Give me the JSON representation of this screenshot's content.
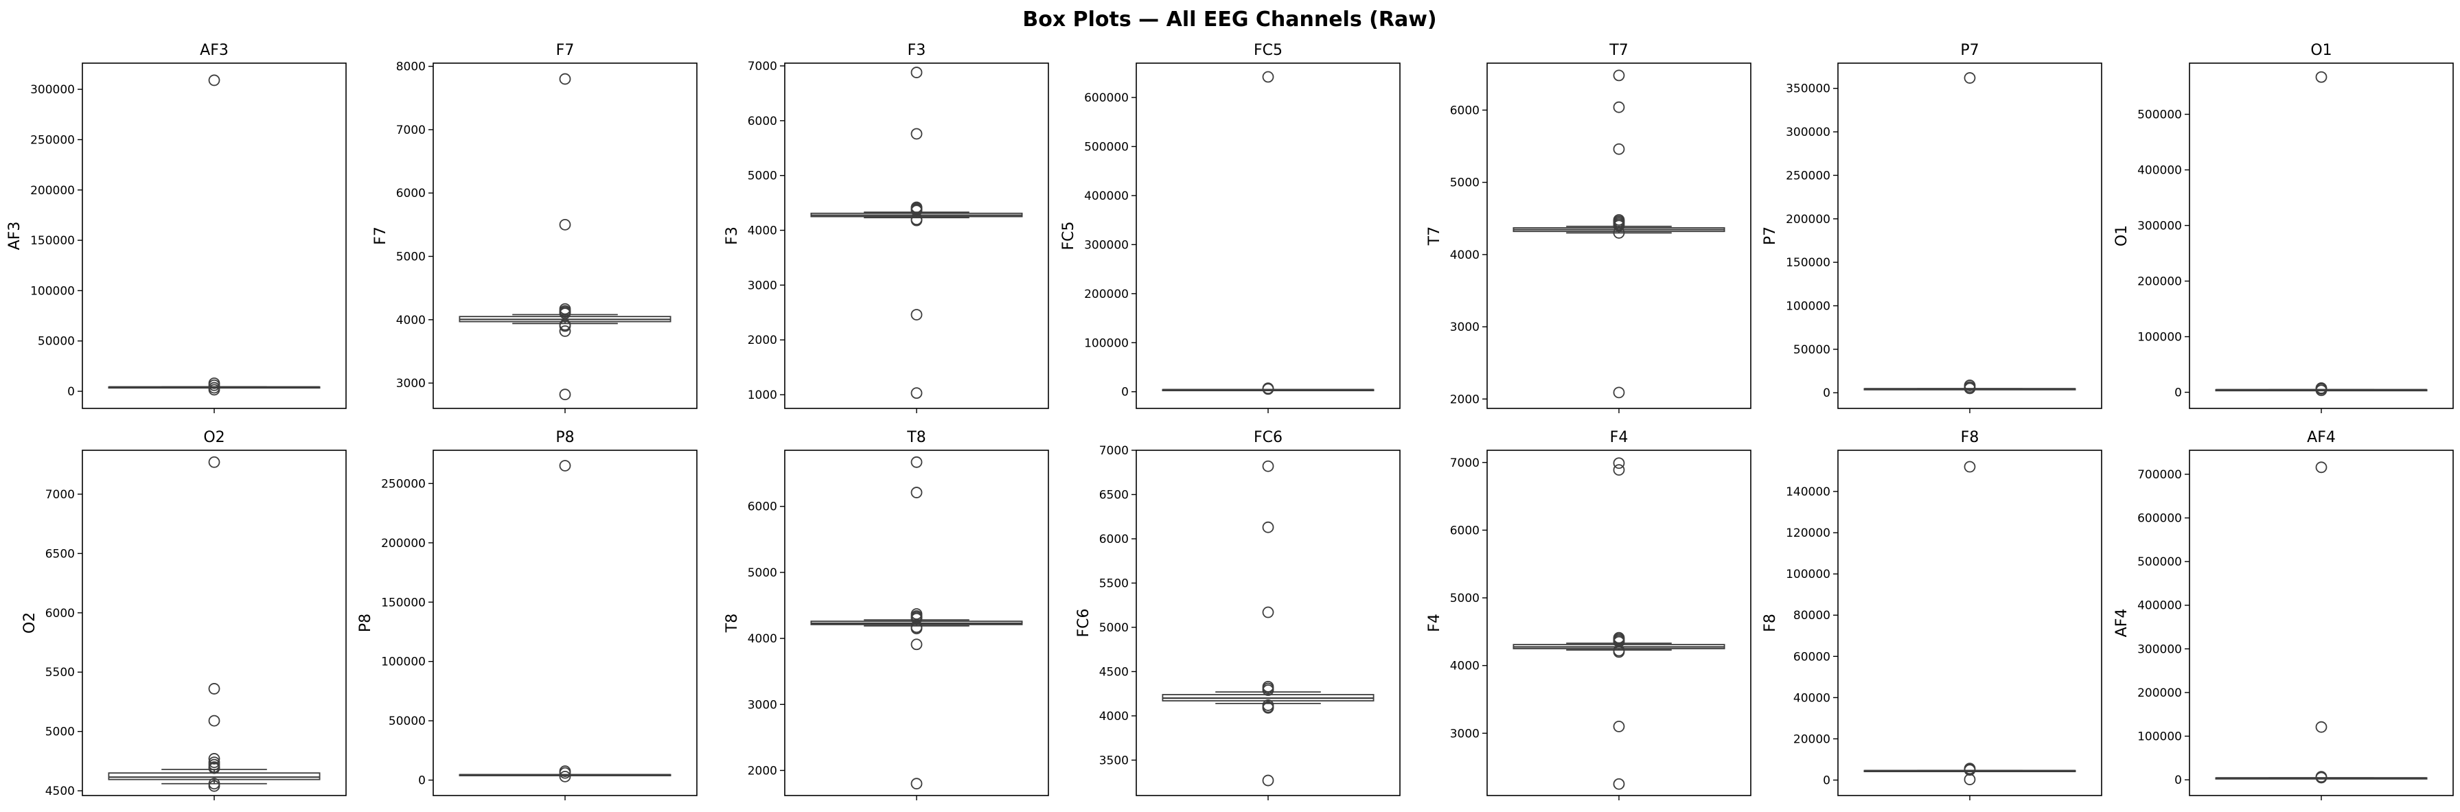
{
  "chart_data": {
    "type": "box",
    "title": "Box Plots — All EEG Channels (Raw)",
    "layout": {
      "rows": 2,
      "cols": 7
    },
    "colors": {
      "box_edge": "#3d3d3d",
      "box_fill": "#ffffff",
      "axes": "#000000"
    },
    "grid": false,
    "panels": [
      {
        "title": "AF3",
        "ylabel": "AF3",
        "ylim": [
          -17000,
          326000
        ],
        "yticks": [
          0,
          50000,
          100000,
          150000,
          200000,
          250000,
          300000
        ],
        "ytick_labels": [
          "0",
          "50000",
          "100000",
          "150000",
          "200000",
          "250000",
          "300000"
        ],
        "box": {
          "q1": 4270,
          "median": 4300,
          "q3": 4330,
          "whisker_low": 4100,
          "whisker_high": 4500
        },
        "outliers": [
          309000,
          8000,
          6000,
          3500,
          1500
        ]
      },
      {
        "title": "F7",
        "ylabel": "F7",
        "ylim": [
          2600,
          8050
        ],
        "yticks": [
          3000,
          4000,
          5000,
          6000,
          7000,
          8000
        ],
        "ytick_labels": [
          "3000",
          "4000",
          "5000",
          "6000",
          "7000",
          "8000"
        ],
        "box": {
          "q1": 3970,
          "median": 4005,
          "q3": 4050,
          "whisker_low": 3940,
          "whisker_high": 4080
        },
        "outliers": [
          7800,
          5500,
          4170,
          4140,
          4120,
          4100,
          3920,
          3900,
          3820,
          2820
        ]
      },
      {
        "title": "F3",
        "ylabel": "F3",
        "ylim": [
          750,
          7050
        ],
        "yticks": [
          1000,
          2000,
          3000,
          4000,
          5000,
          6000,
          7000
        ],
        "ytick_labels": [
          "1000",
          "2000",
          "3000",
          "4000",
          "5000",
          "6000",
          "7000"
        ],
        "box": {
          "q1": 4250,
          "median": 4275,
          "q3": 4310,
          "whisker_low": 4230,
          "whisker_high": 4330
        },
        "outliers": [
          6880,
          5760,
          4420,
          4400,
          4380,
          4360,
          4200,
          4180,
          2460,
          1030
        ]
      },
      {
        "title": "FC5",
        "ylabel": "FC5",
        "ylim": [
          -34000,
          670000
        ],
        "yticks": [
          0,
          100000,
          200000,
          300000,
          400000,
          500000,
          600000
        ],
        "ytick_labels": [
          "0",
          "100000",
          "200000",
          "300000",
          "400000",
          "500000",
          "600000"
        ],
        "box": {
          "q1": 4300,
          "median": 4330,
          "q3": 4360,
          "whisker_low": 4200,
          "whisker_high": 4500
        },
        "outliers": [
          642000,
          7000,
          5500
        ]
      },
      {
        "title": "T7",
        "ylabel": "T7",
        "ylim": [
          1870,
          6650
        ],
        "yticks": [
          2000,
          3000,
          4000,
          5000,
          6000
        ],
        "ytick_labels": [
          "2000",
          "3000",
          "4000",
          "5000",
          "6000"
        ],
        "box": {
          "q1": 4320,
          "median": 4345,
          "q3": 4370,
          "whisker_low": 4300,
          "whisker_high": 4390
        },
        "outliers": [
          6480,
          6040,
          5460,
          4480,
          4460,
          4440,
          4420,
          4400,
          4300,
          2090
        ]
      },
      {
        "title": "P7",
        "ylabel": "P7",
        "ylim": [
          -18000,
          379000
        ],
        "yticks": [
          0,
          50000,
          100000,
          150000,
          200000,
          250000,
          300000,
          350000
        ],
        "ytick_labels": [
          "0",
          "50000",
          "100000",
          "150000",
          "200000",
          "250000",
          "300000",
          "350000"
        ],
        "box": {
          "q1": 4580,
          "median": 4600,
          "q3": 4630,
          "whisker_low": 4500,
          "whisker_high": 4700
        },
        "outliers": [
          362000,
          8500,
          6500,
          5000
        ]
      },
      {
        "title": "O1",
        "ylabel": "O1",
        "ylim": [
          -29000,
          592000
        ],
        "yticks": [
          0,
          100000,
          200000,
          300000,
          400000,
          500000
        ],
        "ytick_labels": [
          "0",
          "100000",
          "200000",
          "300000",
          "400000",
          "500000"
        ],
        "box": {
          "q1": 4600,
          "median": 4630,
          "q3": 4660,
          "whisker_low": 4500,
          "whisker_high": 4800
        },
        "outliers": [
          567000,
          7500,
          6000,
          3500
        ]
      },
      {
        "title": "O2",
        "ylabel": "O2",
        "ylim": [
          4460,
          7370
        ],
        "yticks": [
          4500,
          5000,
          5500,
          6000,
          6500,
          7000
        ],
        "ytick_labels": [
          "4500",
          "5000",
          "5500",
          "6000",
          "6500",
          "7000"
        ],
        "box": {
          "q1": 4595,
          "median": 4615,
          "q3": 4650,
          "whisker_low": 4560,
          "whisker_high": 4680
        },
        "outliers": [
          7270,
          5360,
          5090,
          4770,
          4740,
          4720,
          4700,
          4690,
          4560,
          4540
        ]
      },
      {
        "title": "P8",
        "ylabel": "P8",
        "ylim": [
          -13000,
          278000
        ],
        "yticks": [
          0,
          50000,
          100000,
          150000,
          200000,
          250000
        ],
        "ytick_labels": [
          "0",
          "50000",
          "100000",
          "150000",
          "200000",
          "250000"
        ],
        "box": {
          "q1": 4580,
          "median": 4600,
          "q3": 4620,
          "whisker_low": 4500,
          "whisker_high": 4700
        },
        "outliers": [
          265000,
          7500,
          6000,
          3000
        ]
      },
      {
        "title": "T8",
        "ylabel": "T8",
        "ylim": [
          1620,
          6850
        ],
        "yticks": [
          2000,
          3000,
          4000,
          5000,
          6000
        ],
        "ytick_labels": [
          "2000",
          "3000",
          "4000",
          "5000",
          "6000"
        ],
        "box": {
          "q1": 4210,
          "median": 4230,
          "q3": 4260,
          "whisker_low": 4190,
          "whisker_high": 4280
        },
        "outliers": [
          6670,
          6210,
          4370,
          4340,
          4320,
          4300,
          4170,
          4150,
          3910,
          1800
        ]
      },
      {
        "title": "FC6",
        "ylabel": "FC6",
        "ylim": [
          3100,
          7000
        ],
        "yticks": [
          3500,
          4000,
          4500,
          5000,
          5500,
          6000,
          6500,
          7000
        ],
        "ytick_labels": [
          "3500",
          "4000",
          "4500",
          "5000",
          "5500",
          "6000",
          "6500",
          "7000"
        ],
        "box": {
          "q1": 4170,
          "median": 4200,
          "q3": 4240,
          "whisker_low": 4140,
          "whisker_high": 4270
        },
        "outliers": [
          6820,
          6130,
          5170,
          4330,
          4310,
          4290,
          4120,
          4100,
          4090,
          3270
        ]
      },
      {
        "title": "F4",
        "ylabel": "F4",
        "ylim": [
          2080,
          7180
        ],
        "yticks": [
          3000,
          4000,
          5000,
          6000,
          7000
        ],
        "ytick_labels": [
          "3000",
          "4000",
          "5000",
          "6000",
          "7000"
        ],
        "box": {
          "q1": 4250,
          "median": 4275,
          "q3": 4310,
          "whisker_low": 4230,
          "whisker_high": 4330
        },
        "outliers": [
          6990,
          6890,
          4410,
          4390,
          4370,
          4350,
          4220,
          4200,
          3100,
          2250
        ]
      },
      {
        "title": "F8",
        "ylabel": "F8",
        "ylim": [
          -7500,
          160000
        ],
        "yticks": [
          0,
          20000,
          40000,
          60000,
          80000,
          100000,
          120000,
          140000
        ],
        "ytick_labels": [
          "0",
          "20000",
          "40000",
          "60000",
          "80000",
          "100000",
          "120000",
          "140000"
        ],
        "box": {
          "q1": 4570,
          "median": 4600,
          "q3": 4620,
          "whisker_low": 4500,
          "whisker_high": 4700
        },
        "outliers": [
          152000,
          5600,
          5200,
          4900,
          300
        ]
      },
      {
        "title": "AF4",
        "ylabel": "AF4",
        "ylim": [
          -36000,
          755000
        ],
        "yticks": [
          0,
          100000,
          200000,
          300000,
          400000,
          500000,
          600000,
          700000
        ],
        "ytick_labels": [
          "0",
          "100000",
          "200000",
          "300000",
          "400000",
          "500000",
          "600000",
          "700000"
        ],
        "box": {
          "q1": 4330,
          "median": 4360,
          "q3": 4390,
          "whisker_low": 4200,
          "whisker_high": 4500
        },
        "outliers": [
          716000,
          121000,
          7000,
          5000
        ]
      }
    ]
  }
}
